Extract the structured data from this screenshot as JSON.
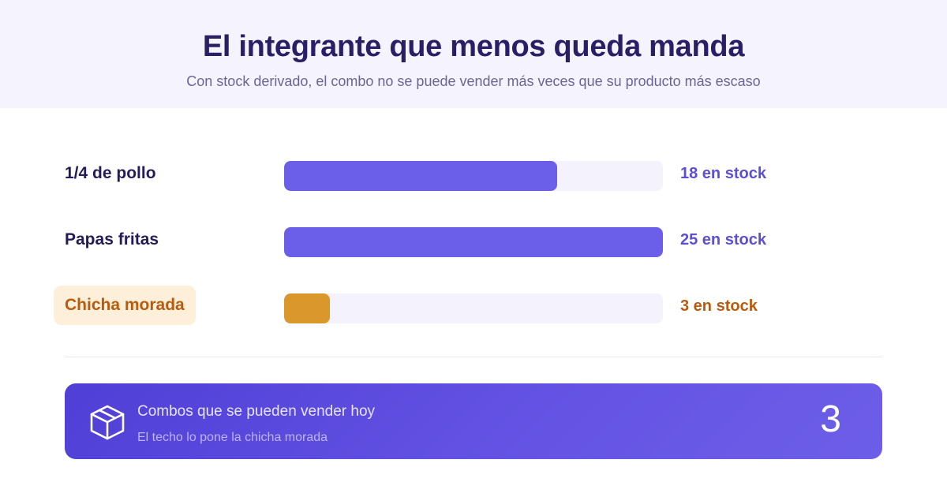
{
  "header": {
    "title": "El integrante que menos queda manda",
    "subtitle": "Con stock derivado, el combo no se puede vender más veces que su producto más escaso"
  },
  "items": [
    {
      "name": "1/4 de pollo",
      "stock_text": "18 en stock",
      "stock": 18,
      "limiting": false
    },
    {
      "name": "Papas fritas",
      "stock_text": "25 en stock",
      "stock": 25,
      "limiting": false
    },
    {
      "name": "Chicha morada",
      "stock_text": "3 en stock",
      "stock": 3,
      "limiting": true
    }
  ],
  "bar_max": 25,
  "result": {
    "icon": "box-icon",
    "title": "Combos que se pueden vender hoy",
    "subtitle": "El techo lo pone la chicha morada",
    "value": "3"
  },
  "colors": {
    "accent": "#6b5ee9",
    "limiting": "#da972c",
    "limiting_text": "#b95b0e",
    "title": "#2a1f66"
  }
}
